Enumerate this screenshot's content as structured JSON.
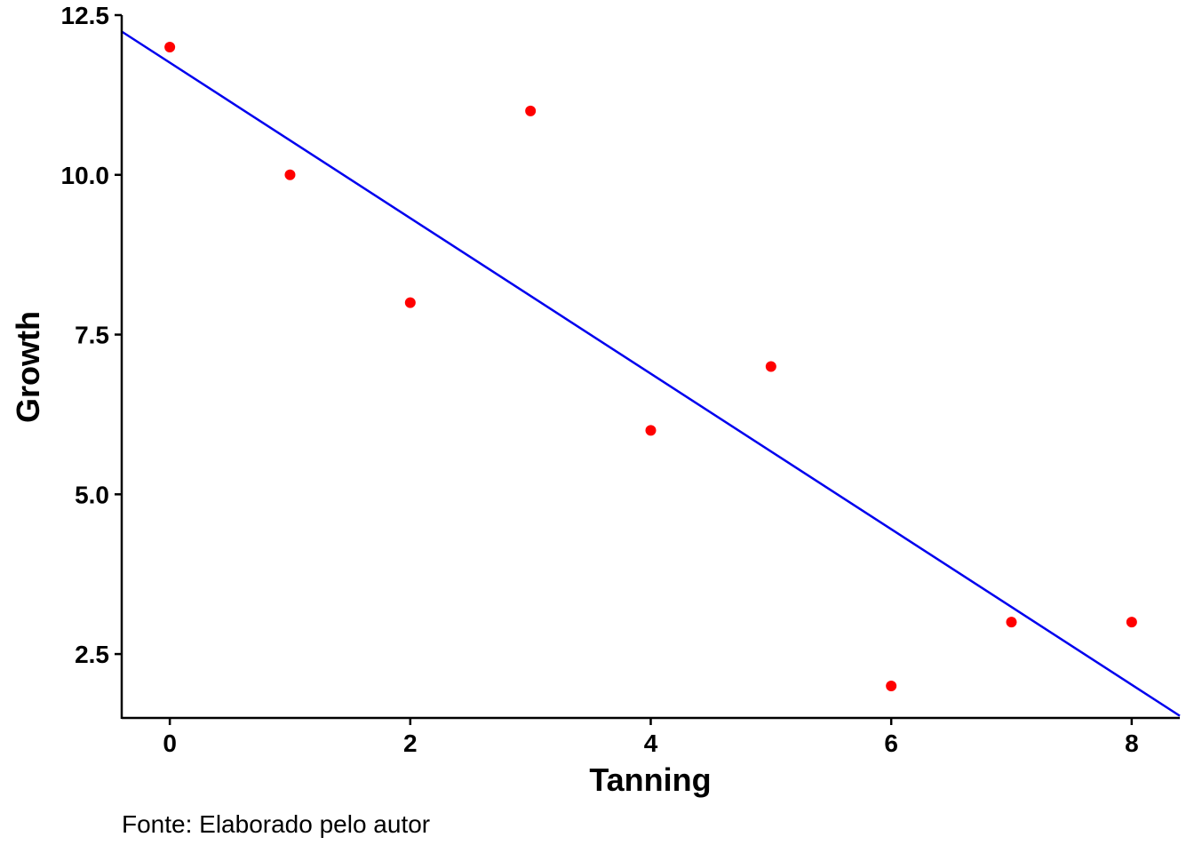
{
  "chart_data": {
    "type": "scatter",
    "xlabel": "Tanning",
    "ylabel": "Growth",
    "caption": "Fonte: Elaborado pelo autor",
    "xlim": [
      -0.4,
      8.4
    ],
    "ylim": [
      1.5,
      12.5
    ],
    "x_ticks": [
      0,
      2,
      4,
      6,
      8
    ],
    "x_tick_labels": [
      "0",
      "2",
      "4",
      "6",
      "8"
    ],
    "y_ticks": [
      2.5,
      5.0,
      7.5,
      10.0,
      12.5
    ],
    "y_tick_labels": [
      "2.5",
      "5.0",
      "7.5",
      "10.0",
      "12.5"
    ],
    "grid": false,
    "point_color": "#ff0000",
    "line_color": "#0000ee",
    "points": [
      {
        "x": 0,
        "y": 12
      },
      {
        "x": 1,
        "y": 10
      },
      {
        "x": 2,
        "y": 8
      },
      {
        "x": 3,
        "y": 11
      },
      {
        "x": 4,
        "y": 6
      },
      {
        "x": 5,
        "y": 7
      },
      {
        "x": 6,
        "y": 2
      },
      {
        "x": 7,
        "y": 3
      },
      {
        "x": 8,
        "y": 3
      }
    ],
    "fit_line": {
      "intercept": 11.756,
      "slope": -1.217
    }
  }
}
